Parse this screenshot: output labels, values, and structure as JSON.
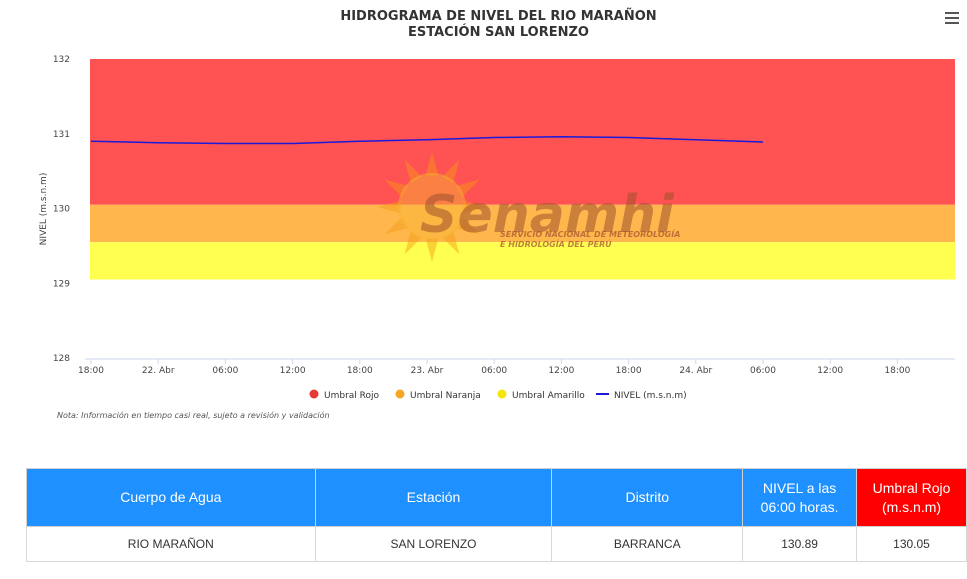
{
  "chart_data": {
    "type": "line",
    "title": "HIDROGRAMA DE NIVEL DEL RIO MARAÑON",
    "subtitle": "ESTACIÓN SAN LORENZO",
    "ylabel": "NIVEL (m.s.n.m)",
    "ylim": [
      128,
      132
    ],
    "yticks": [
      "128",
      "129",
      "130",
      "131",
      "132"
    ],
    "xticks": [
      "18:00",
      "22. Abr",
      "06:00",
      "12:00",
      "18:00",
      "23. Abr",
      "06:00",
      "12:00",
      "18:00",
      "24. Abr",
      "06:00",
      "12:00",
      "18:00"
    ],
    "bands": [
      {
        "name": "Umbral Rojo",
        "from": 130.05,
        "to": 132,
        "color": "#ff5252"
      },
      {
        "name": "Umbral Naranja",
        "from": 129.55,
        "to": 130.05,
        "color": "#ffb74d"
      },
      {
        "name": "Umbral Amarillo",
        "from": 129.05,
        "to": 129.55,
        "color": "#ffff50"
      }
    ],
    "series": [
      {
        "name": "NIVEL (m.s.n.m)",
        "color": "#1a1adb",
        "x_ticks_index": [
          0,
          1,
          2,
          3,
          4,
          5,
          6,
          7,
          8,
          9,
          10
        ],
        "values": [
          130.9,
          130.88,
          130.87,
          130.87,
          130.9,
          130.92,
          130.95,
          130.96,
          130.95,
          130.92,
          130.89
        ]
      }
    ],
    "legend": [
      {
        "label": "Umbral Rojo",
        "color": "#e53935",
        "kind": "dot"
      },
      {
        "label": "Umbral Naranja",
        "color": "#f5a623",
        "kind": "dot"
      },
      {
        "label": "Umbral Amarillo",
        "color": "#f5e50a",
        "kind": "dot"
      },
      {
        "label": "NIVEL (m.s.n.m)",
        "color": "#1a1adb",
        "kind": "line"
      }
    ],
    "legend_position": "bottom-center",
    "grid": false
  },
  "watermark": {
    "name": "Senamhi",
    "tagline_1": "SERVICIO NACIONAL DE METEOROLOGÍA",
    "tagline_2": "E HIDROLOGÍA DEL PERÚ"
  },
  "note": "Nota: Información en tiempo casi real, sujeto a revisión y validación",
  "table": {
    "headers": {
      "cuerpo": "Cuerpo de Agua",
      "estacion": "Estación",
      "distrito": "Distrito",
      "nivel_1": "NIVEL a las",
      "nivel_2": "06:00 horas.",
      "umbral_1": "Umbral Rojo",
      "umbral_2": "(m.s.n.m)"
    },
    "row": {
      "cuerpo": "RIO MARAÑON",
      "estacion": "SAN LORENZO",
      "distrito": "BARRANCA",
      "nivel": "130.89",
      "umbral": "130.05"
    }
  }
}
